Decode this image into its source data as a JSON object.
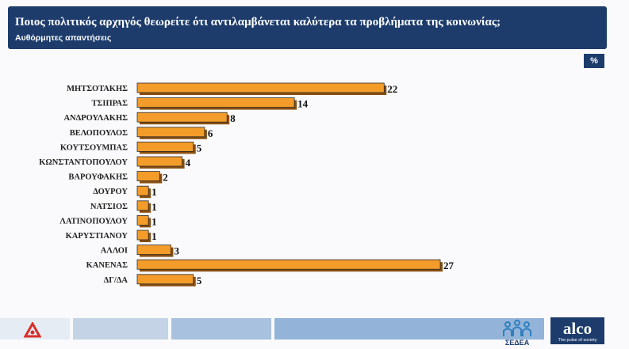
{
  "header": {
    "title": "Ποιος πολιτικός αρχηγός θεωρείτε ότι αντιλαμβάνεται καλύτερα τα προβλήματα της κοινωνίας;",
    "subtitle": "Αυθόρμητες απαντήσεις"
  },
  "unit_badge": "%",
  "chart_data": {
    "type": "bar",
    "orientation": "horizontal",
    "title": "Ποιος πολιτικός αρχηγός θεωρείτε ότι αντιλαμβάνεται καλύτερα τα προβλήματα της κοινωνίας;",
    "subtitle": "Αυθόρμητες απαντήσεις",
    "unit": "%",
    "categories": [
      "ΜΗΤΣΟΤΑΚΗΣ",
      "ΤΣΙΠΡΑΣ",
      "ΑΝΔΡΟΥΛΑΚΗΣ",
      "ΒΕΛΟΠΟΥΛΟΣ",
      "ΚΟΥΤΣΟΥΜΠΑΣ",
      "ΚΩΝΣΤΑΝΤΟΠΟΥΛΟΥ",
      "ΒΑΡΟΥΦΑΚΗΣ",
      "ΔΟΥΡΟΥ",
      "ΝΑΤΣΙΟΣ",
      "ΛΑΤΙΝΟΠΟΥΛΟΥ",
      "ΚΑΡΥΣΤΙΑΝΟΥ",
      "ΑΛΛΟΙ",
      "ΚΑΝΕΝΑΣ",
      "ΔΓ/ΔΑ"
    ],
    "values": [
      22,
      14,
      8,
      6,
      5,
      4,
      2,
      1,
      1,
      1,
      1,
      3,
      27,
      5
    ],
    "bar_color": "#f39c2a",
    "bar_stroke": "#2a2a2a",
    "grid": false,
    "legend": "none"
  },
  "footer": {
    "sedea_label": "ΣΕΔΕΑ",
    "alco_name": "alco",
    "alco_tagline": "The pulse of society",
    "box_colors": [
      "#e6ecf4",
      "#c4d4e6",
      "#a7c1de",
      "#93b4d8"
    ],
    "left_logo_color": "#d8302b"
  }
}
